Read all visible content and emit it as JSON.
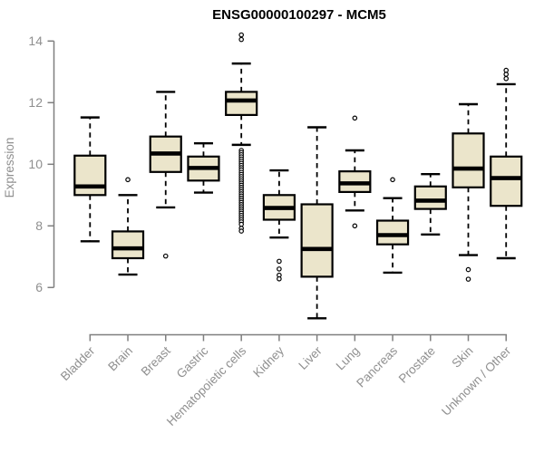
{
  "page": {
    "background": "#ffffff"
  },
  "chart_data": {
    "type": "boxplot",
    "title": "ENSG00000100297 - MCM5",
    "xlabel": "",
    "ylabel": "Expression",
    "ylim": [
      6,
      14
    ],
    "yticks": [
      6,
      8,
      10,
      12,
      14
    ],
    "grid": false,
    "legend": false,
    "colors": {
      "box_fill": "#ebe5cb",
      "box_stroke": "#000000",
      "median": "#000000",
      "whisker": "#000000",
      "outlier": "#000000",
      "axis": "#7f7f7f",
      "tick_label": "#8f8f8f",
      "title": "#000000"
    },
    "categories": [
      "Bladder",
      "Brain",
      "Breast",
      "Gastric",
      "Hematopoietic cells",
      "Kidney",
      "Liver",
      "Lung",
      "Pancreas",
      "Prostate",
      "Skin",
      "Unknown / Other"
    ],
    "boxes": [
      {
        "category": "Bladder",
        "whisker_low": 7.5,
        "q1": 9.0,
        "median": 9.28,
        "q3": 10.28,
        "whisker_high": 11.52,
        "outliers": []
      },
      {
        "category": "Brain",
        "whisker_low": 6.42,
        "q1": 6.95,
        "median": 7.27,
        "q3": 7.82,
        "whisker_high": 9.0,
        "outliers": [
          9.5
        ]
      },
      {
        "category": "Breast",
        "whisker_low": 8.6,
        "q1": 9.75,
        "median": 10.35,
        "q3": 10.9,
        "whisker_high": 12.35,
        "outliers": [
          7.02
        ]
      },
      {
        "category": "Gastric",
        "whisker_low": 9.08,
        "q1": 9.47,
        "median": 9.88,
        "q3": 10.25,
        "whisker_high": 10.68,
        "outliers": []
      },
      {
        "category": "Hematopoietic cells",
        "whisker_low": 10.63,
        "q1": 11.6,
        "median": 12.07,
        "q3": 12.35,
        "whisker_high": 13.27,
        "outliers": [
          14.2,
          14.05,
          10.45,
          10.38,
          10.31,
          10.24,
          10.17,
          10.1,
          10.03,
          9.96,
          9.89,
          9.82,
          9.74,
          9.67,
          9.6,
          9.53,
          9.46,
          9.39,
          9.32,
          9.25,
          9.18,
          9.11,
          9.04,
          8.97,
          8.9,
          8.83,
          8.76,
          8.69,
          8.62,
          8.55,
          8.48,
          8.41,
          8.34,
          8.27,
          8.2,
          8.13,
          8.05,
          7.92,
          7.83
        ]
      },
      {
        "category": "Kidney",
        "whisker_low": 7.62,
        "q1": 8.2,
        "median": 8.58,
        "q3": 9.0,
        "whisker_high": 9.8,
        "outliers": [
          6.85,
          6.6,
          6.4,
          6.28
        ]
      },
      {
        "category": "Liver",
        "whisker_low": 5.0,
        "q1": 6.35,
        "median": 7.25,
        "q3": 8.7,
        "whisker_high": 11.2,
        "outliers": []
      },
      {
        "category": "Lung",
        "whisker_low": 8.5,
        "q1": 9.1,
        "median": 9.38,
        "q3": 9.77,
        "whisker_high": 10.45,
        "outliers": [
          11.5,
          8.0
        ]
      },
      {
        "category": "Pancreas",
        "whisker_low": 6.48,
        "q1": 7.4,
        "median": 7.7,
        "q3": 8.17,
        "whisker_high": 8.9,
        "outliers": [
          9.5
        ]
      },
      {
        "category": "Prostate",
        "whisker_low": 7.72,
        "q1": 8.55,
        "median": 8.82,
        "q3": 9.28,
        "whisker_high": 9.68,
        "outliers": []
      },
      {
        "category": "Skin",
        "whisker_low": 7.05,
        "q1": 9.25,
        "median": 9.86,
        "q3": 11.0,
        "whisker_high": 11.95,
        "outliers": [
          6.58,
          6.27
        ]
      },
      {
        "category": "Unknown / Other",
        "whisker_low": 6.95,
        "q1": 8.65,
        "median": 9.55,
        "q3": 10.25,
        "whisker_high": 12.6,
        "outliers": [
          13.05,
          12.92,
          12.78
        ]
      }
    ]
  }
}
